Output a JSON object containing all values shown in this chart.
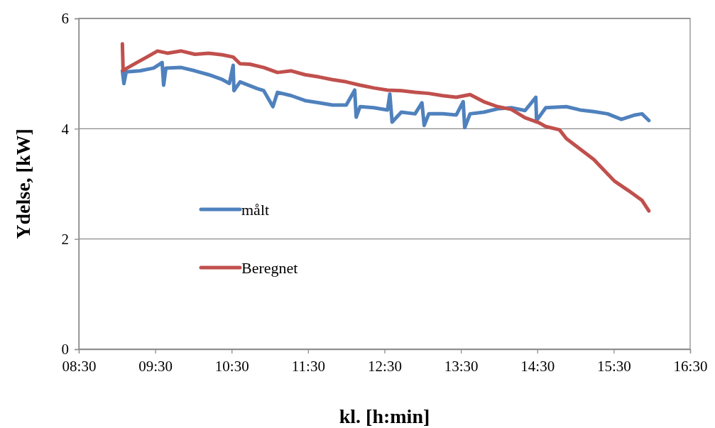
{
  "chart_data": {
    "type": "line",
    "xlabel": "kl. [h:min]",
    "ylabel": "Ydelse, [kW]",
    "xlim": [
      8.5,
      16.5
    ],
    "xticks": [
      {
        "value": 8.5,
        "label": "08:30"
      },
      {
        "value": 9.5,
        "label": "09:30"
      },
      {
        "value": 10.5,
        "label": "10:30"
      },
      {
        "value": 11.5,
        "label": "11:30"
      },
      {
        "value": 12.5,
        "label": "12:30"
      },
      {
        "value": 13.5,
        "label": "13:30"
      },
      {
        "value": 14.5,
        "label": "14:30"
      },
      {
        "value": 15.5,
        "label": "15:30"
      },
      {
        "value": 16.5,
        "label": "16:30"
      }
    ],
    "ylim": [
      0,
      6
    ],
    "yticks": [
      0,
      2,
      4,
      6
    ],
    "grid": "y",
    "legend": "left",
    "line_style": "solid",
    "marker": "none",
    "series": [
      {
        "name": "målt",
        "color": "#4f81bd",
        "x": [
          9.07,
          9.09,
          9.12,
          9.3,
          9.48,
          9.59,
          9.61,
          9.64,
          9.84,
          10.02,
          10.2,
          10.38,
          10.47,
          10.52,
          10.53,
          10.61,
          10.83,
          10.92,
          11.04,
          11.1,
          11.28,
          11.46,
          11.64,
          11.82,
          12.0,
          12.11,
          12.13,
          12.18,
          12.36,
          12.54,
          12.57,
          12.6,
          12.72,
          12.9,
          12.99,
          13.02,
          13.08,
          13.26,
          13.44,
          13.53,
          13.55,
          13.62,
          13.8,
          13.98,
          14.16,
          14.34,
          14.48,
          14.49,
          14.61,
          14.88,
          15.06,
          15.24,
          15.42,
          15.6,
          15.78,
          15.87,
          15.96
        ],
        "values": [
          5.05,
          4.82,
          5.03,
          5.05,
          5.1,
          5.2,
          4.79,
          5.1,
          5.11,
          5.05,
          4.98,
          4.89,
          4.82,
          5.15,
          4.69,
          4.85,
          4.73,
          4.69,
          4.4,
          4.66,
          4.6,
          4.51,
          4.47,
          4.43,
          4.43,
          4.7,
          4.21,
          4.4,
          4.38,
          4.34,
          4.63,
          4.12,
          4.3,
          4.27,
          4.47,
          4.06,
          4.27,
          4.27,
          4.25,
          4.49,
          4.02,
          4.27,
          4.3,
          4.36,
          4.38,
          4.33,
          4.57,
          4.15,
          4.38,
          4.4,
          4.34,
          4.31,
          4.27,
          4.17,
          4.25,
          4.27,
          4.15
        ]
      },
      {
        "name": "Beregnet",
        "color": "#c0504d",
        "x": [
          9.07,
          9.08,
          9.12,
          9.26,
          9.39,
          9.53,
          9.66,
          9.84,
          10.02,
          10.2,
          10.38,
          10.52,
          10.61,
          10.74,
          10.92,
          11.1,
          11.28,
          11.46,
          11.64,
          11.82,
          12.0,
          12.18,
          12.36,
          12.54,
          12.72,
          12.9,
          13.08,
          13.26,
          13.44,
          13.62,
          13.8,
          13.98,
          14.16,
          14.34,
          14.52,
          14.61,
          14.79,
          14.88,
          15.06,
          15.24,
          15.33,
          15.51,
          15.69,
          15.87,
          15.96
        ],
        "values": [
          5.54,
          5.05,
          5.09,
          5.2,
          5.3,
          5.41,
          5.37,
          5.41,
          5.35,
          5.37,
          5.34,
          5.3,
          5.18,
          5.17,
          5.11,
          5.02,
          5.05,
          4.98,
          4.94,
          4.89,
          4.85,
          4.79,
          4.74,
          4.7,
          4.69,
          4.66,
          4.64,
          4.6,
          4.57,
          4.62,
          4.49,
          4.4,
          4.35,
          4.2,
          4.11,
          4.04,
          3.98,
          3.82,
          3.63,
          3.44,
          3.31,
          3.05,
          2.88,
          2.7,
          2.51
        ]
      }
    ]
  }
}
